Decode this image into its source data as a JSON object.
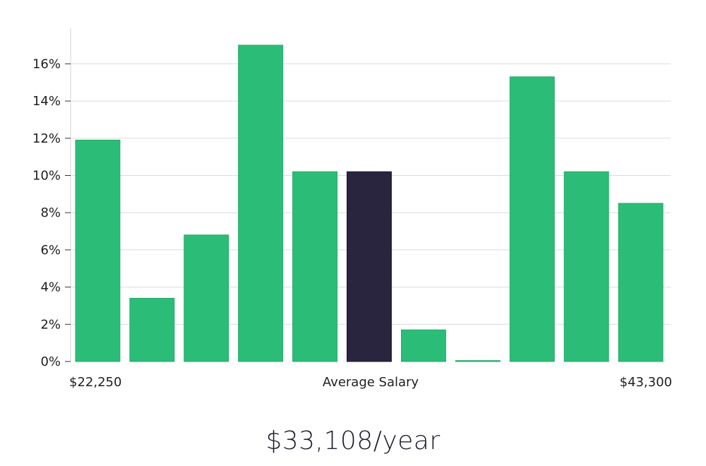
{
  "colors": {
    "bar": "#2bbd77",
    "highlight": "#29253f",
    "grid": "#dcdcdc",
    "axis": "#d0d0d0"
  },
  "chart_data": {
    "type": "bar",
    "title": "",
    "xlabel": "Average Salary",
    "ylabel": "",
    "ylim": [
      0,
      17.9
    ],
    "yticks": [
      0,
      2,
      4,
      6,
      8,
      10,
      12,
      14,
      16
    ],
    "ytick_labels": [
      "0%",
      "2%",
      "4%",
      "6%",
      "8%",
      "10%",
      "12%",
      "14%",
      "16%"
    ],
    "x_min_label": "$22,250",
    "x_max_label": "$43,300",
    "values": [
      11.9,
      3.4,
      6.8,
      17.0,
      10.2,
      10.2,
      1.7,
      0.05,
      15.3,
      10.2,
      8.5
    ],
    "highlight_index": 5
  },
  "summary": {
    "salary": "$33,108/year"
  }
}
